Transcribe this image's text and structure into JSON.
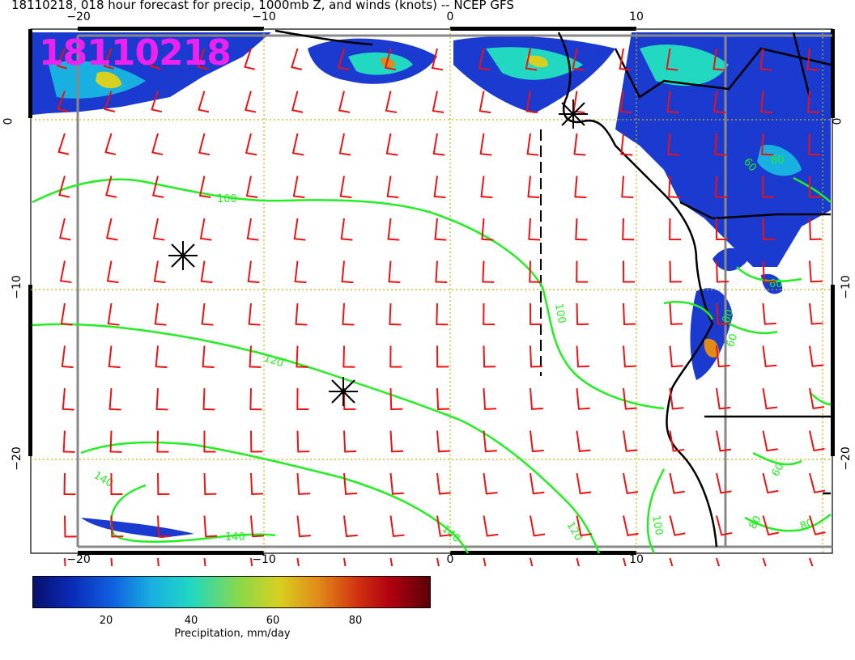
{
  "title": "18110218, 018 hour forecast for precip, 1000mb Z, and winds (knots) -- NCEP GFS",
  "stamp": "18110218",
  "axes": {
    "top_ticks": [
      "−20",
      "−10",
      "0",
      "10"
    ],
    "bottom_ticks": [
      "−20",
      "−10",
      "0",
      "10"
    ],
    "left_ticks": [
      "0",
      "−10",
      "−20"
    ],
    "right_ticks": [
      "0",
      "−10",
      "−20"
    ]
  },
  "colorbar": {
    "ticks": [
      "20",
      "40",
      "60",
      "80"
    ],
    "label": "Precipitation, mm/day"
  },
  "contours": {
    "labels": [
      "100",
      "120",
      "140",
      "140",
      "100",
      "120",
      "140",
      "100",
      "60",
      "80",
      "80",
      "60",
      "60",
      "60",
      "80",
      "80"
    ]
  },
  "colors": {
    "precip_low": "#08106e",
    "precip_high": "#5a0008",
    "contour": "#22ee22",
    "wind_barb": "#ee1111",
    "stamp": "#ee22ee",
    "grid_dotted": "#c8b400",
    "frame": "#888888"
  },
  "icons": [
    "low-pressure-marker-icon"
  ]
}
